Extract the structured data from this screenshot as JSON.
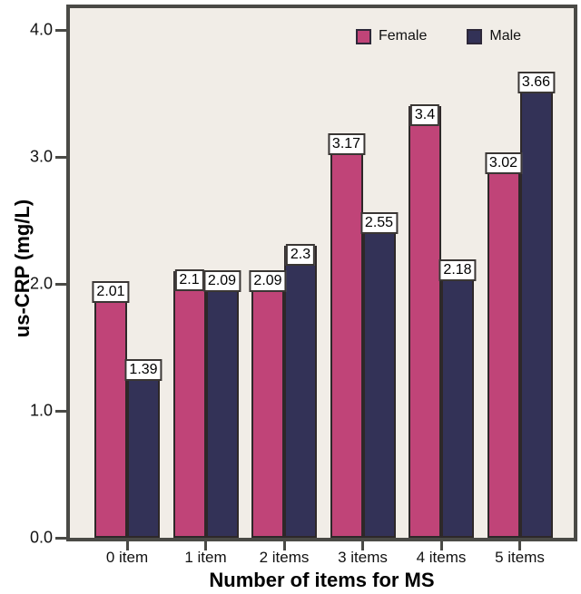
{
  "figure": {
    "background": "#ffffff",
    "plot_background": "#f1ede7",
    "frame_color": "#4a4a46",
    "bar_outline_color": "#2e2829",
    "value_label_box": {
      "background": "#ffffff",
      "border": "#3a3634",
      "text_color": "#000000"
    }
  },
  "chart_data": {
    "type": "bar",
    "title": "",
    "xlabel": "Number of items for MS",
    "ylabel": "us-CRP (mg/L)",
    "categories": [
      "0 item",
      "1 item",
      "2 items",
      "3 items",
      "4 items",
      "5 items"
    ],
    "series": [
      {
        "name": "Female",
        "color": "#c04478",
        "values": [
          2.01,
          2.1,
          2.09,
          3.17,
          3.4,
          3.02
        ],
        "labels": [
          "2.01",
          "2.1",
          "2.09",
          "3.17",
          "3.4",
          "3.02"
        ]
      },
      {
        "name": "Male",
        "color": "#333257",
        "values": [
          1.39,
          2.09,
          2.3,
          2.55,
          2.18,
          3.66
        ],
        "labels": [
          "1.39",
          "2.09",
          "2.3",
          "2.55",
          "2.18",
          "3.66"
        ]
      }
    ],
    "ylim": [
      0.0,
      4.2
    ],
    "yticks": [
      "0.0",
      "1.0",
      "2.0",
      "3.0",
      "4.0"
    ],
    "ytick_values": [
      0,
      1,
      2,
      3,
      4
    ],
    "grid": false,
    "legend_position": "top-right-inside",
    "value_labels_shown": true
  }
}
